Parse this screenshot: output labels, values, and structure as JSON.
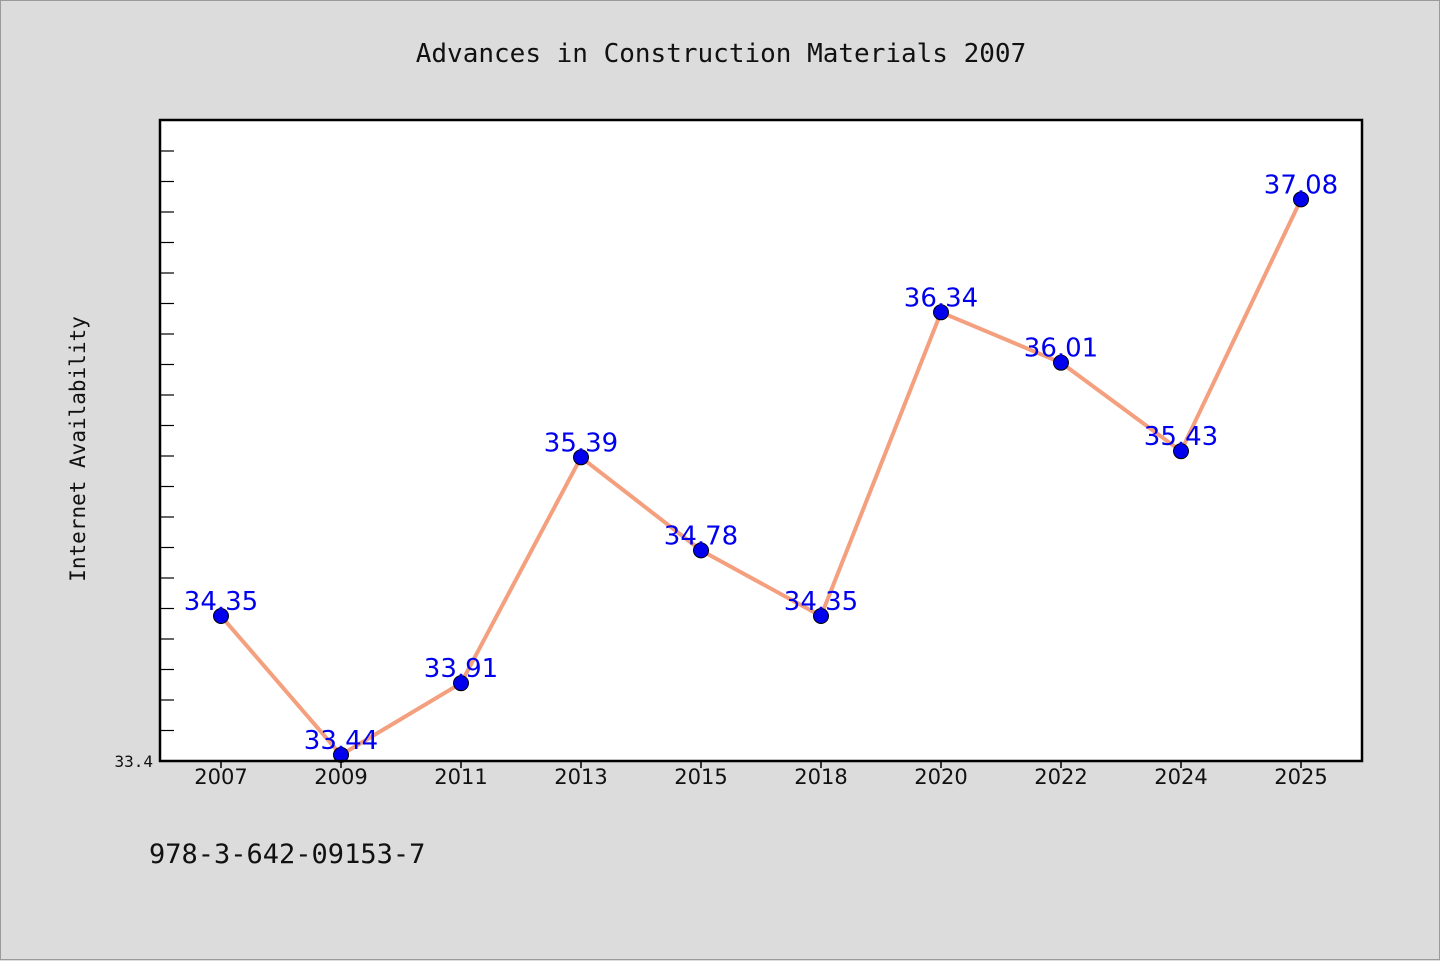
{
  "chart_data": {
    "type": "line",
    "title": "Advances in Construction Materials 2007",
    "ylabel": "Internet Availability",
    "xlabel": "",
    "categories": [
      "2007",
      "2009",
      "2011",
      "2013",
      "2015",
      "2018",
      "2020",
      "2022",
      "2024",
      "2025"
    ],
    "series": [
      {
        "values": [
          34.35,
          33.44,
          33.91,
          35.39,
          34.78,
          34.35,
          36.34,
          36.01,
          35.43,
          37.08
        ],
        "data_labels": [
          "34.35",
          "33.44",
          "33.91",
          "35.39",
          "34.78",
          "34.35",
          "36.34",
          "36.01",
          "35.43",
          "37.08"
        ]
      }
    ],
    "ylim": [
      33.4,
      37.6
    ],
    "y_min_label": "33.4",
    "grid": false,
    "legend": "none",
    "colors": {
      "line": "#f4a07e",
      "marker": "#0000ee",
      "label": "#0000ee",
      "plot_bg": "#ffffff",
      "page_bg": "#dcdcdc"
    }
  },
  "footnote": "978-3-642-09153-7"
}
